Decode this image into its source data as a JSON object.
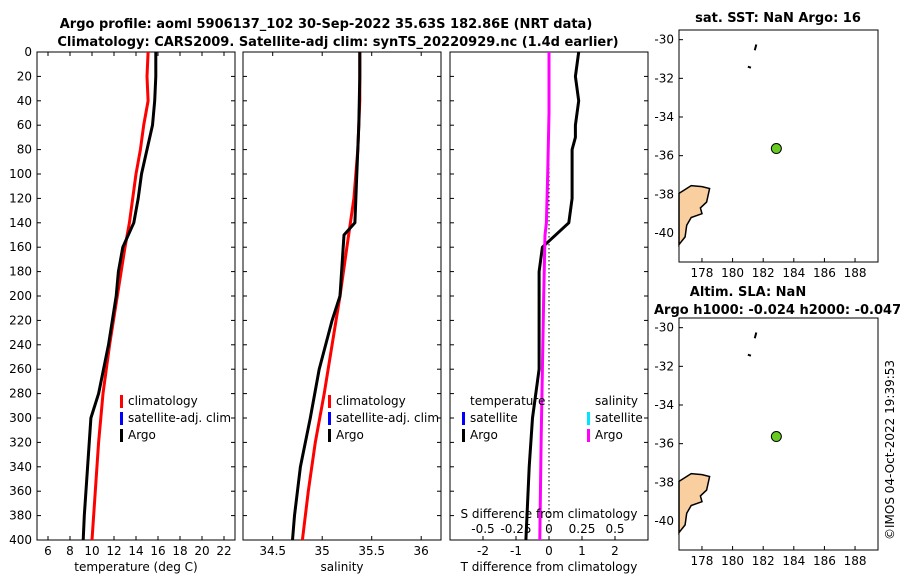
{
  "title_line1": "Argo profile: aoml 5906137_102 30-Sep-2022 35.63S 182.86E (NRT data)",
  "title_line2": "Climatology: CARS2009. Satellite-adj clim: synTS_20220929.nc (1.4d earlier)",
  "copyright": "©IMOS 04-Oct-2022 19:39:53",
  "colors": {
    "climatology": "#ff0000",
    "satellite_clim": "#0000ff",
    "argo": "#000000",
    "sal_satellite": "#00e5ff",
    "sal_argo": "#ff00ff",
    "land": "#f9cfa0",
    "marker": "#66cc22"
  },
  "chart_data": [
    {
      "type": "line",
      "name": "temperature-profile",
      "xlabel": "temperature (deg C)",
      "xlim": [
        5,
        23
      ],
      "xticks": [
        "6",
        "8",
        "10",
        "12",
        "14",
        "16",
        "18",
        "20",
        "22"
      ],
      "ylim": [
        0,
        400
      ],
      "yticks": [
        "0",
        "20",
        "40",
        "60",
        "80",
        "100",
        "120",
        "140",
        "160",
        "180",
        "200",
        "220",
        "240",
        "260",
        "280",
        "300",
        "320",
        "340",
        "360",
        "380",
        "400"
      ],
      "legend": [
        "climatology",
        "satellite-adj. clim",
        "Argo"
      ],
      "series": [
        {
          "name": "climatology",
          "depth": [
            0,
            20,
            40,
            60,
            80,
            100,
            140,
            160,
            200,
            240,
            280,
            320,
            360,
            400
          ],
          "values": [
            15.1,
            15.0,
            15.1,
            14.7,
            14.4,
            14.0,
            13.4,
            13.0,
            12.3,
            11.6,
            11.0,
            10.6,
            10.3,
            10.0
          ]
        },
        {
          "name": "Argo",
          "depth": [
            0,
            20,
            40,
            60,
            80,
            100,
            120,
            140,
            160,
            180,
            200,
            240,
            280,
            300,
            340,
            380,
            400
          ],
          "values": [
            15.8,
            15.8,
            15.7,
            15.5,
            15.0,
            14.5,
            14.2,
            13.8,
            12.8,
            12.4,
            12.2,
            11.5,
            10.6,
            9.9,
            9.6,
            9.3,
            9.2
          ]
        }
      ]
    },
    {
      "type": "line",
      "name": "salinity-profile",
      "xlabel": "salinity",
      "xlim": [
        34.2,
        36.2
      ],
      "xticks": [
        "34.5",
        "35",
        "35.5",
        "36"
      ],
      "ylim": [
        0,
        400
      ],
      "legend": [
        "climatology",
        "satellite-adj. clim",
        "Argo"
      ],
      "series": [
        {
          "name": "climatology",
          "depth": [
            0,
            40,
            80,
            120,
            160,
            200,
            240,
            280,
            320,
            360,
            400
          ],
          "values": [
            35.38,
            35.38,
            35.36,
            35.32,
            35.25,
            35.18,
            35.1,
            35.02,
            34.93,
            34.86,
            34.8
          ]
        },
        {
          "name": "Argo",
          "depth": [
            0,
            20,
            60,
            100,
            140,
            150,
            200,
            220,
            260,
            300,
            340,
            380,
            400
          ],
          "values": [
            35.38,
            35.38,
            35.37,
            35.35,
            35.33,
            35.22,
            35.18,
            35.1,
            34.97,
            34.88,
            34.78,
            34.72,
            34.7
          ]
        }
      ]
    },
    {
      "type": "line",
      "name": "difference-profile",
      "xlabel": "T difference from climatology",
      "xlim": [
        -3,
        3
      ],
      "xticks": [
        "-2",
        "-1",
        "0",
        "1",
        "2"
      ],
      "top_label": "S difference from climatology",
      "top_ticks": [
        "-0.5",
        "-0.25",
        "0",
        "0.25",
        "0.5"
      ],
      "legend_temperature": [
        "temperature",
        "satellite",
        "Argo"
      ],
      "legend_salinity": [
        "salinity",
        "satellite",
        "Argo"
      ],
      "series": [
        {
          "name": "T Argo",
          "depth": [
            0,
            20,
            40,
            60,
            70,
            80,
            100,
            120,
            140,
            160,
            180,
            200,
            260,
            300,
            340,
            400
          ],
          "values": [
            0.9,
            0.8,
            0.9,
            0.8,
            0.8,
            0.7,
            0.7,
            0.7,
            0.6,
            -0.2,
            -0.3,
            -0.3,
            -0.3,
            -0.5,
            -0.6,
            -0.7
          ]
        },
        {
          "name": "S Argo",
          "depth": [
            0,
            50,
            100,
            140,
            150,
            200,
            260,
            320,
            400
          ],
          "values": [
            0.0,
            0.0,
            -0.01,
            -0.02,
            -0.03,
            -0.04,
            -0.05,
            -0.06,
            -0.07
          ]
        }
      ]
    },
    {
      "type": "scatter",
      "name": "map-sst",
      "title": "sat. SST: NaN Argo: 16",
      "xlim": [
        176.5,
        189.5
      ],
      "xticks": [
        "178",
        "180",
        "182",
        "184",
        "186",
        "188"
      ],
      "ylim": [
        -41.5,
        -29.5
      ],
      "yticks": [
        "-30",
        "-32",
        "-34",
        "-36",
        "-38",
        "-40"
      ],
      "point": {
        "lon": 182.86,
        "lat": -35.63
      }
    },
    {
      "type": "scatter",
      "name": "map-sla",
      "title": "Altim. SLA: NaN",
      "subtitle": "Argo h1000: -0.024 h2000: -0.047",
      "xlim": [
        176.5,
        189.5
      ],
      "xticks": [
        "178",
        "180",
        "182",
        "184",
        "186",
        "188"
      ],
      "ylim": [
        -41.5,
        -29.5
      ],
      "yticks": [
        "-30",
        "-32",
        "-34",
        "-36",
        "-38",
        "-40"
      ],
      "point": {
        "lon": 182.86,
        "lat": -35.63
      }
    }
  ]
}
